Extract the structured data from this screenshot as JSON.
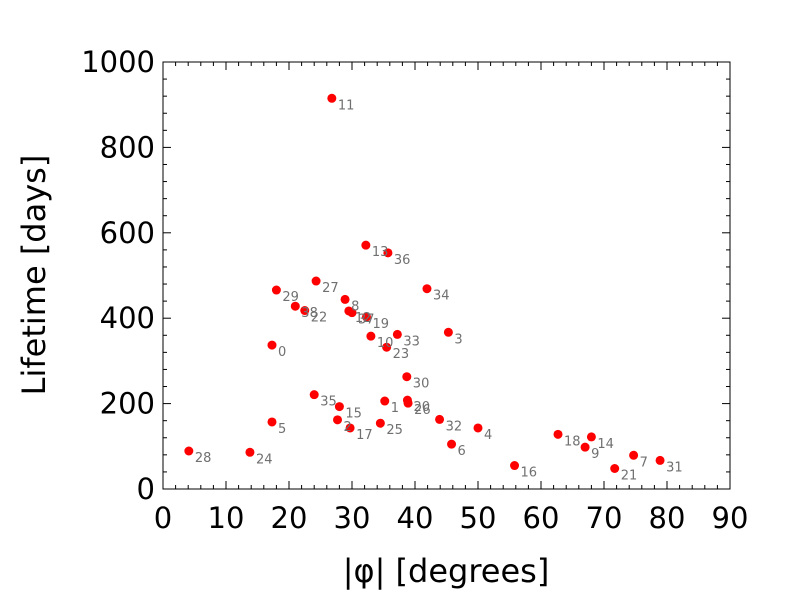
{
  "chart_data": {
    "type": "scatter",
    "xlabel": "|φ| [degrees]",
    "ylabel": "Lifetime [days]",
    "xlim": [
      0,
      90
    ],
    "ylim": [
      0,
      1000
    ],
    "x_ticks": [
      0,
      10,
      20,
      30,
      40,
      50,
      60,
      70,
      80,
      90
    ],
    "y_ticks": [
      0,
      200,
      400,
      600,
      800,
      1000
    ],
    "grid": false,
    "legend": "none",
    "point_color": "#ff0000",
    "label_color": "#707070",
    "points": [
      {
        "label": "0",
        "x": 17.3,
        "y": 337
      },
      {
        "label": "1",
        "x": 35.2,
        "y": 206
      },
      {
        "label": "2",
        "x": 27.7,
        "y": 162
      },
      {
        "label": "3",
        "x": 45.3,
        "y": 367
      },
      {
        "label": "4",
        "x": 50.0,
        "y": 143
      },
      {
        "label": "5",
        "x": 17.3,
        "y": 157
      },
      {
        "label": "6",
        "x": 45.8,
        "y": 105
      },
      {
        "label": "7",
        "x": 74.7,
        "y": 79
      },
      {
        "label": "8",
        "x": 28.9,
        "y": 444
      },
      {
        "label": "9",
        "x": 67.0,
        "y": 98
      },
      {
        "label": "10",
        "x": 33.0,
        "y": 358
      },
      {
        "label": "11",
        "x": 26.8,
        "y": 915
      },
      {
        "label": "12",
        "x": 29.5,
        "y": 417
      },
      {
        "label": "13",
        "x": 32.2,
        "y": 571
      },
      {
        "label": "14",
        "x": 68.0,
        "y": 122
      },
      {
        "label": "15",
        "x": 28.0,
        "y": 193
      },
      {
        "label": "16",
        "x": 55.8,
        "y": 55
      },
      {
        "label": "17",
        "x": 29.7,
        "y": 143
      },
      {
        "label": "18",
        "x": 62.7,
        "y": 128
      },
      {
        "label": "19",
        "x": 32.3,
        "y": 403
      },
      {
        "label": "20",
        "x": 38.8,
        "y": 208
      },
      {
        "label": "21",
        "x": 71.7,
        "y": 48
      },
      {
        "label": "22",
        "x": 22.5,
        "y": 418
      },
      {
        "label": "23",
        "x": 35.5,
        "y": 332
      },
      {
        "label": "24",
        "x": 13.8,
        "y": 86
      },
      {
        "label": "25",
        "x": 34.5,
        "y": 154
      },
      {
        "label": "26",
        "x": 38.9,
        "y": 201
      },
      {
        "label": "27",
        "x": 24.3,
        "y": 487
      },
      {
        "label": "28",
        "x": 4.1,
        "y": 89
      },
      {
        "label": "29",
        "x": 18.0,
        "y": 466
      },
      {
        "label": "30",
        "x": 38.7,
        "y": 263
      },
      {
        "label": "31",
        "x": 78.9,
        "y": 67
      },
      {
        "label": "32",
        "x": 43.9,
        "y": 163
      },
      {
        "label": "33",
        "x": 37.2,
        "y": 362
      },
      {
        "label": "34",
        "x": 41.9,
        "y": 469
      },
      {
        "label": "35",
        "x": 24.0,
        "y": 221
      },
      {
        "label": "36",
        "x": 35.7,
        "y": 553
      },
      {
        "label": "37",
        "x": 30.0,
        "y": 413
      },
      {
        "label": "38",
        "x": 21.0,
        "y": 428
      }
    ]
  }
}
